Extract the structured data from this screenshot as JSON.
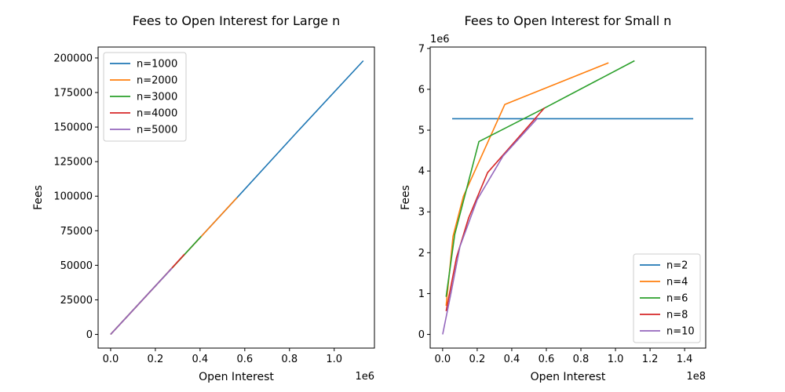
{
  "chart_data": [
    {
      "type": "line",
      "title": "Fees to Open Interest for Large n",
      "xlabel": "Open Interest",
      "ylabel": "Fees",
      "x_offset_label": "1e6",
      "y_offset_label": "",
      "xlim": [
        -0.056,
        1.18
      ],
      "ylim": [
        -9900,
        207900
      ],
      "x_scale": 1000000,
      "y_scale": 1,
      "xticks": [
        0,
        0.2,
        0.4,
        0.6,
        0.8,
        1.0
      ],
      "xtick_labels": [
        "0.0",
        "0.2",
        "0.4",
        "0.6",
        "0.8",
        "1.0"
      ],
      "yticks": [
        0,
        25000,
        50000,
        75000,
        100000,
        125000,
        150000,
        175000,
        200000
      ],
      "ytick_labels": [
        "0",
        "25000",
        "50000",
        "75000",
        "100000",
        "125000",
        "150000",
        "175000",
        "200000"
      ],
      "legend_position": "upper-left",
      "series": [
        {
          "name": "n=1000",
          "color": "#1f77b4",
          "x": [
            0,
            0.28,
            0.56,
            0.84,
            1.13
          ],
          "y": [
            0,
            49000,
            98000,
            147500,
            198000
          ]
        },
        {
          "name": "n=2000",
          "color": "#ff7f0e",
          "x": [
            0,
            0.14,
            0.28,
            0.42,
            0.565
          ],
          "y": [
            0,
            24500,
            49000,
            73500,
            99000
          ]
        },
        {
          "name": "n=3000",
          "color": "#2ca02c",
          "x": [
            0,
            0.1,
            0.2,
            0.3,
            0.405
          ],
          "y": [
            0,
            17500,
            35000,
            52500,
            71000
          ]
        },
        {
          "name": "n=4000",
          "color": "#d62728",
          "x": [
            0,
            0.08,
            0.16,
            0.24,
            0.33
          ],
          "y": [
            0,
            14000,
            28000,
            42000,
            58000
          ]
        },
        {
          "name": "n=5000",
          "color": "#9467bd",
          "x": [
            0,
            0.07,
            0.14,
            0.21,
            0.275
          ],
          "y": [
            0,
            12300,
            24500,
            36800,
            48000
          ]
        }
      ]
    },
    {
      "type": "line",
      "title": "Fees to Open Interest for Small n",
      "xlabel": "Open Interest",
      "ylabel": "Fees",
      "x_offset_label": "1e8",
      "y_offset_label": "1e6",
      "xlim": [
        -0.072,
        1.522
      ],
      "ylim": [
        -0.335,
        7.035
      ],
      "x_scale": 100000000,
      "y_scale": 1000000,
      "xticks": [
        0,
        0.2,
        0.4,
        0.6,
        0.8,
        1.0,
        1.2,
        1.4
      ],
      "xtick_labels": [
        "0.0",
        "0.2",
        "0.4",
        "0.6",
        "0.8",
        "1.0",
        "1.2",
        "1.4"
      ],
      "yticks": [
        0,
        1,
        2,
        3,
        4,
        5,
        6,
        7
      ],
      "ytick_labels": [
        "0",
        "1",
        "2",
        "3",
        "4",
        "5",
        "6",
        "7"
      ],
      "legend_position": "lower-right",
      "series": [
        {
          "name": "n=2",
          "color": "#1f77b4",
          "x": [
            0.055,
            1.45
          ],
          "y": [
            5.28,
            5.28
          ]
        },
        {
          "name": "n=4",
          "color": "#ff7f0e",
          "x": [
            0.02,
            0.06,
            0.12,
            0.36,
            0.96
          ],
          "y": [
            0.7,
            2.4,
            3.38,
            5.63,
            6.65
          ]
        },
        {
          "name": "n=6",
          "color": "#2ca02c",
          "x": [
            0.02,
            0.07,
            0.21,
            0.58,
            1.11
          ],
          "y": [
            0.92,
            2.45,
            4.72,
            5.52,
            6.7
          ]
        },
        {
          "name": "n=8",
          "color": "#d62728",
          "x": [
            0.02,
            0.08,
            0.15,
            0.26,
            0.59
          ],
          "y": [
            0.57,
            1.88,
            2.85,
            3.96,
            5.55
          ]
        },
        {
          "name": "n=10",
          "color": "#9467bd",
          "x": [
            0.0,
            0.05,
            0.1,
            0.2,
            0.35,
            0.55
          ],
          "y": [
            0.0,
            1.05,
            2.15,
            3.3,
            4.37,
            5.3
          ]
        }
      ]
    }
  ]
}
